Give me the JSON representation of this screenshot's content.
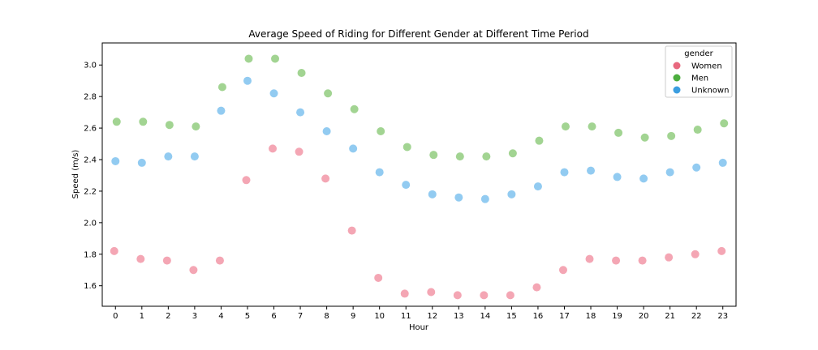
{
  "chart_data": {
    "type": "scatter",
    "title": "Average Speed of Riding for Different Gender at Different Time Period",
    "xlabel": "Hour",
    "ylabel": "Speed (m/s)",
    "categories": [
      "0",
      "1",
      "2",
      "3",
      "4",
      "5",
      "6",
      "7",
      "8",
      "9",
      "10",
      "11",
      "12",
      "13",
      "14",
      "15",
      "16",
      "17",
      "18",
      "19",
      "20",
      "21",
      "22",
      "23"
    ],
    "yticks": [
      "1.6",
      "1.8",
      "2.0",
      "2.2",
      "2.4",
      "2.6",
      "2.8",
      "3.0"
    ],
    "ylim": [
      1.47,
      3.14
    ],
    "grid": false,
    "legend": {
      "title": "gender",
      "placement": "top-right"
    },
    "series": [
      {
        "name": "Women",
        "color": "#f4a6b4",
        "legend_color": "#e8697f",
        "values": [
          1.82,
          1.77,
          1.76,
          1.7,
          1.76,
          2.27,
          2.47,
          2.45,
          2.28,
          1.95,
          1.65,
          1.55,
          1.56,
          1.54,
          1.54,
          1.54,
          1.59,
          1.7,
          1.77,
          1.76,
          1.76,
          1.78,
          1.8,
          1.82
        ]
      },
      {
        "name": "Men",
        "color": "#a2d492",
        "legend_color": "#4cae3e",
        "values": [
          2.64,
          2.64,
          2.62,
          2.61,
          2.86,
          3.04,
          3.04,
          2.95,
          2.82,
          2.72,
          2.58,
          2.48,
          2.43,
          2.42,
          2.42,
          2.44,
          2.52,
          2.61,
          2.61,
          2.57,
          2.54,
          2.55,
          2.59,
          2.63
        ]
      },
      {
        "name": "Unknown",
        "color": "#92cbf1",
        "legend_color": "#3b9ee0",
        "values": [
          2.39,
          2.38,
          2.42,
          2.42,
          2.71,
          2.9,
          2.82,
          2.7,
          2.58,
          2.47,
          2.32,
          2.24,
          2.18,
          2.16,
          2.15,
          2.18,
          2.23,
          2.32,
          2.33,
          2.29,
          2.28,
          2.32,
          2.35,
          2.38
        ]
      }
    ]
  }
}
